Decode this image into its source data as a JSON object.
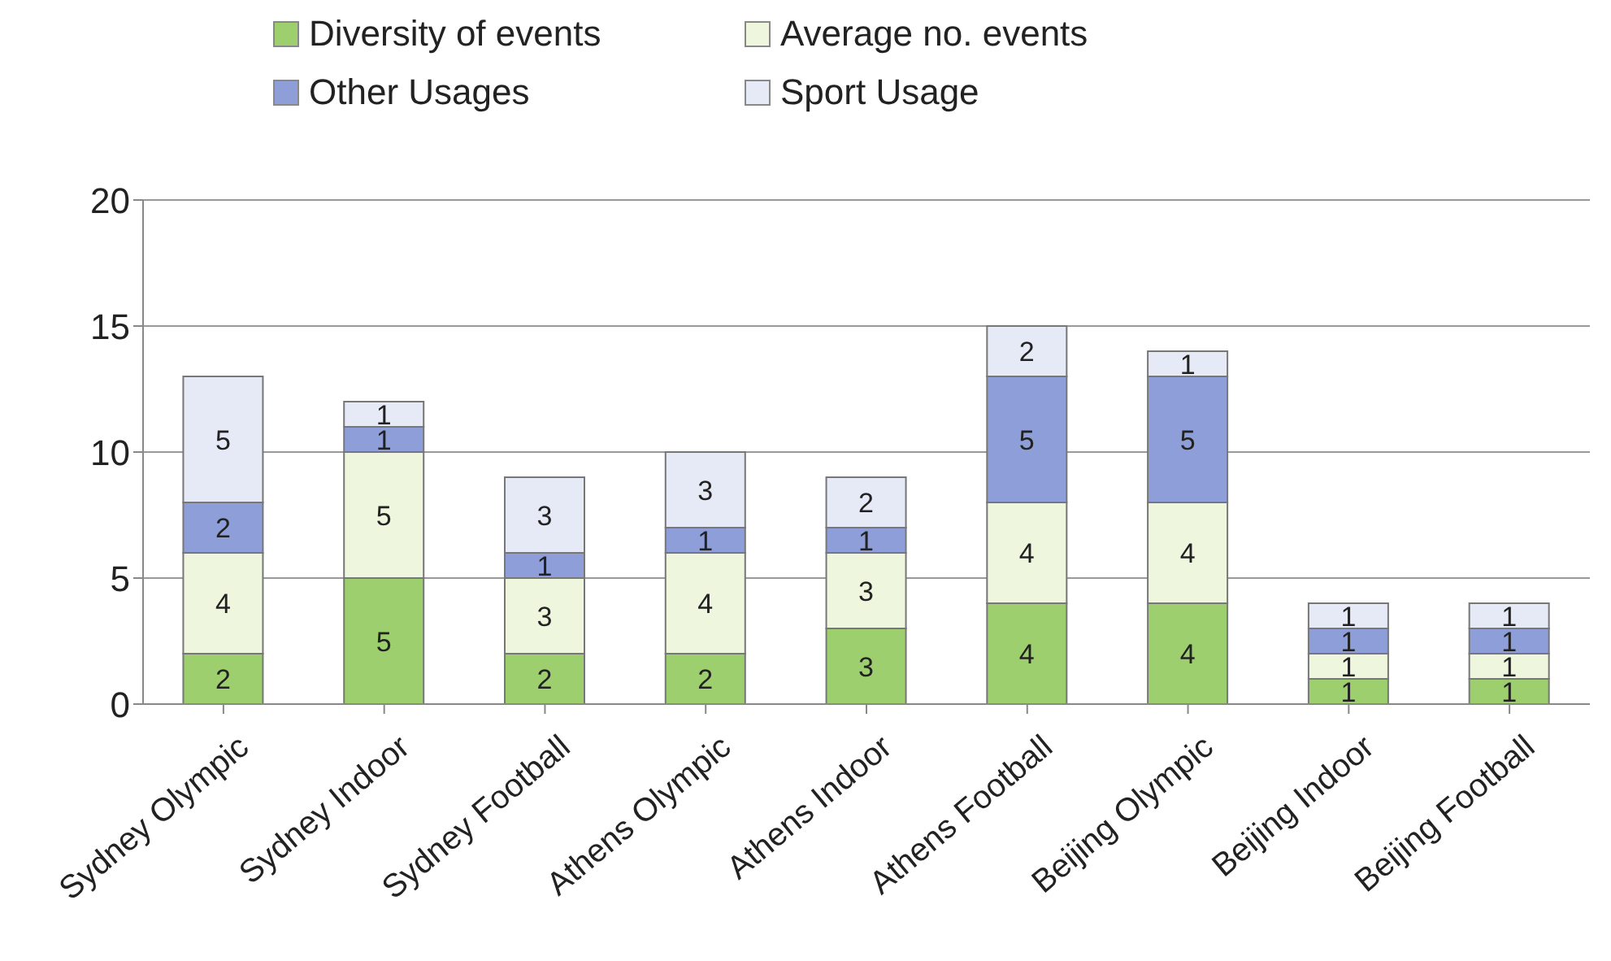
{
  "chart_data": {
    "type": "bar",
    "stacked": true,
    "categories": [
      "Sydney Olympic",
      "Sydney Indoor",
      "Sydney Football",
      "Athens Olympic",
      "Athens Indoor",
      "Athens Football",
      "Beijing Olympic",
      "Beijing Indoor",
      "Beijing Football"
    ],
    "series": [
      {
        "name": "Diversity of events",
        "color": "#9dcf6e",
        "values": [
          2,
          5,
          2,
          2,
          3,
          4,
          4,
          1,
          1
        ]
      },
      {
        "name": "Average no. events",
        "color": "#eef6de",
        "values": [
          4,
          5,
          3,
          4,
          3,
          4,
          4,
          1,
          1
        ]
      },
      {
        "name": "Other Usages",
        "color": "#8e9ed8",
        "values": [
          2,
          1,
          1,
          1,
          1,
          5,
          5,
          1,
          1
        ]
      },
      {
        "name": "Sport Usage",
        "color": "#e6e9f6",
        "values": [
          5,
          1,
          3,
          3,
          2,
          2,
          1,
          1,
          1
        ]
      }
    ],
    "ylim": [
      0,
      20
    ],
    "yticks": [
      0,
      5,
      10,
      15,
      20
    ],
    "grid": "y",
    "legend": "top",
    "data_labels": true
  }
}
